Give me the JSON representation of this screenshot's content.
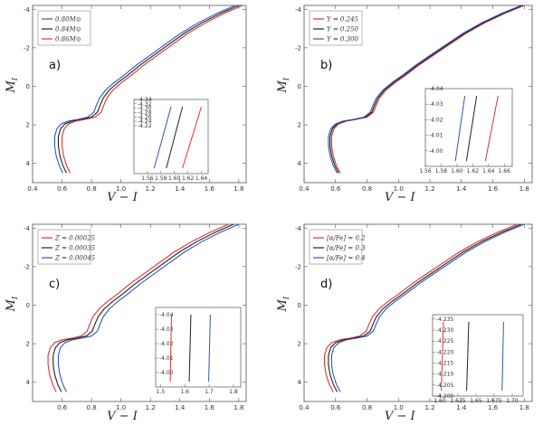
{
  "chart_data": [
    {
      "type": "line",
      "panel_label": "a)",
      "xlabel": "V − I",
      "ylabel": "M_I",
      "xlim": [
        0.4,
        1.85
      ],
      "ylim": [
        5,
        -4.2
      ],
      "xticks": [
        0.4,
        0.6,
        0.8,
        1.0,
        1.2,
        1.4,
        1.6,
        1.8
      ],
      "xtick_labels": [
        "0.4",
        "0.6",
        "0.8",
        "1.0",
        "1.2",
        "1.4",
        "1.6",
        "1.8"
      ],
      "yticks": [
        -4,
        -2,
        0,
        2,
        4
      ],
      "ytick_labels": [
        "-4",
        "-2",
        "0",
        "2",
        "4"
      ],
      "legend": [
        "0.80M⊙",
        "0.84M⊙",
        "0.86M⊙"
      ],
      "legend_position": "top-left",
      "series": [
        {
          "name": "0.80M⊙",
          "color": "#3355bb",
          "dx": -0.025
        },
        {
          "name": "0.84M⊙",
          "color": "#222222",
          "dx": 0.0
        },
        {
          "name": "0.86M⊙",
          "color": "#dd3333",
          "dx": 0.025
        }
      ],
      "inset": {
        "xlim": [
          1.54,
          1.65
        ],
        "ylim": [
          -4.0,
          -4.34
        ],
        "xticks": [
          1.56,
          1.58,
          1.6,
          1.62,
          1.64
        ],
        "xtick_labels": [
          "1.56",
          "1.58",
          "1.60",
          "1.62",
          "1.64"
        ],
        "yticks": [
          -4.34,
          -4.32,
          -4.3,
          -4.28,
          -4.26,
          -4.24,
          -4.22
        ],
        "ytick_labels": [
          "-4.34",
          "-4.32",
          "-4.30",
          "-4.28",
          "-4.26",
          "-4.24",
          "-4.22"
        ],
        "lines": [
          {
            "color": "#3355bb",
            "x_top": 1.595,
            "x_bottom": 1.57
          },
          {
            "color": "#222222",
            "x_top": 1.612,
            "x_bottom": 1.588
          },
          {
            "color": "#dd3333",
            "x_top": 1.64,
            "x_bottom": 1.612
          }
        ]
      }
    },
    {
      "type": "line",
      "panel_label": "b)",
      "xlabel": "V − I",
      "ylabel": "M_I",
      "xlim": [
        0.4,
        1.85
      ],
      "ylim": [
        5,
        -4.2
      ],
      "xticks": [
        0.4,
        0.6,
        0.8,
        1.0,
        1.2,
        1.4,
        1.6,
        1.8
      ],
      "xtick_labels": [
        "0.4",
        "0.6",
        "0.8",
        "1.0",
        "1.2",
        "1.4",
        "1.6",
        "1.8"
      ],
      "yticks": [
        -4,
        -2,
        0,
        2,
        4
      ],
      "ytick_labels": [
        "-4",
        "-2",
        "0",
        "2",
        "4"
      ],
      "legend": [
        "Y = 0.245",
        "Y = 0.250",
        "Y = 0.300"
      ],
      "legend_position": "top-left",
      "series": [
        {
          "name": "Y = 0.245",
          "color": "#dd3333",
          "dx": 0.0
        },
        {
          "name": "Y = 0.250",
          "color": "#222222",
          "dx": -0.01
        },
        {
          "name": "Y = 0.300",
          "color": "#3355bb",
          "dx": -0.02
        }
      ],
      "inset": {
        "xlim": [
          1.56,
          1.67
        ],
        "ylim": [
          -3.99,
          -4.04
        ],
        "xticks": [
          1.56,
          1.58,
          1.6,
          1.62,
          1.64,
          1.66
        ],
        "xtick_labels": [
          "1.56",
          "1.58",
          "1.60",
          "1.62",
          "1.64",
          "1.66"
        ],
        "yticks": [
          -4.04,
          -4.03,
          -4.02,
          -4.01,
          -4.0
        ],
        "ytick_labels": [
          "-4.04",
          "-4.03",
          "-4.02",
          "-4.01",
          "-4.00"
        ],
        "lines": [
          {
            "color": "#3355bb",
            "x_top": 1.61,
            "x_bottom": 1.598
          },
          {
            "color": "#222222",
            "x_top": 1.625,
            "x_bottom": 1.612
          },
          {
            "color": "#dd3333",
            "x_top": 1.652,
            "x_bottom": 1.636
          }
        ]
      }
    },
    {
      "type": "line",
      "panel_label": "c)",
      "xlabel": "V − I",
      "ylabel": "M_I",
      "xlim": [
        0.4,
        1.85
      ],
      "ylim": [
        5,
        -4.2
      ],
      "xticks": [
        0.6,
        0.8,
        1.0,
        1.2,
        1.4,
        1.6,
        1.8
      ],
      "xtick_labels": [
        "0.6",
        "0.8",
        "1.0",
        "1.2",
        "1.4",
        "1.6",
        "1.8"
      ],
      "yticks": [
        -4,
        -2,
        0,
        2,
        4
      ],
      "ytick_labels": [
        "-4",
        "-2",
        "0",
        "2",
        "4"
      ],
      "legend": [
        "Z = 0.00025",
        "Z = 0.00035",
        "Z = 0.00045"
      ],
      "legend_position": "top-left",
      "series": [
        {
          "name": "Z = 0.00025",
          "color": "#dd3333",
          "dx": -0.07
        },
        {
          "name": "Z = 0.00035",
          "color": "#222222",
          "dx": -0.035
        },
        {
          "name": "Z = 0.00045",
          "color": "#3355bb",
          "dx": 0.0
        }
      ],
      "inset": {
        "xlim": [
          1.48,
          1.83
        ],
        "ylim": [
          -3.99,
          -4.045
        ],
        "xticks": [
          1.5,
          1.6,
          1.7,
          1.8
        ],
        "xtick_labels": [
          "1.5",
          "1.6",
          "1.7",
          "1.8"
        ],
        "yticks": [
          -4.04,
          -4.03,
          -4.02,
          -4.01,
          -4.0
        ],
        "ytick_labels": [
          "-4.04",
          "-4.03",
          "-4.02",
          "-4.01",
          "-4.00"
        ],
        "lines": [
          {
            "color": "#dd3333",
            "x_top": 1.545,
            "x_bottom": 1.54
          },
          {
            "color": "#222222",
            "x_top": 1.625,
            "x_bottom": 1.618
          },
          {
            "color": "#3355bb",
            "x_top": 1.705,
            "x_bottom": 1.698
          }
        ]
      }
    },
    {
      "type": "line",
      "panel_label": "d)",
      "xlabel": "V − I",
      "ylabel": "M_I",
      "xlim": [
        0.4,
        1.85
      ],
      "ylim": [
        5,
        -4.2
      ],
      "xticks": [
        0.4,
        0.6,
        0.8,
        1.0,
        1.2,
        1.4,
        1.6,
        1.8
      ],
      "xtick_labels": [
        "0.4",
        "0.6",
        "0.8",
        "1.0",
        "1.2",
        "1.4",
        "1.6",
        "1.8"
      ],
      "yticks": [
        -4,
        -2,
        0,
        2,
        4
      ],
      "ytick_labels": [
        "-4",
        "-2",
        "0",
        "2",
        "4"
      ],
      "legend": [
        "[α/Fe] = 0.2",
        "[α/Fe] = 0.3",
        "[α/Fe] = 0.4"
      ],
      "legend_position": "top-left",
      "series": [
        {
          "name": "[α/Fe] = 0.2",
          "color": "#dd3333",
          "dx": -0.045
        },
        {
          "name": "[α/Fe] = 0.3",
          "color": "#222222",
          "dx": -0.02
        },
        {
          "name": "[α/Fe] = 0.4",
          "color": "#3355bb",
          "dx": 0.0
        }
      ],
      "inset": {
        "xlim": [
          1.59,
          1.715
        ],
        "ylim": [
          -4.2,
          -4.237
        ],
        "xticks": [
          1.6,
          1.625,
          1.65,
          1.675,
          1.7
        ],
        "xtick_labels": [
          "1.60",
          "1.625",
          "1.65",
          "1.675",
          "1.70"
        ],
        "yticks": [
          -4.235,
          -4.23,
          -4.225,
          -4.22,
          -4.215,
          -4.21,
          -4.205,
          -4.2
        ],
        "ytick_labels": [
          "-4.235",
          "-4.230",
          "-4.225",
          "-4.220",
          "-4.215",
          "-4.210",
          "-4.205",
          "-4.200"
        ],
        "lines": [
          {
            "color": "#dd3333",
            "x_top": 1.605,
            "x_bottom": 1.602
          },
          {
            "color": "#222222",
            "x_top": 1.64,
            "x_bottom": 1.637
          },
          {
            "color": "#3355bb",
            "x_top": 1.688,
            "x_bottom": 1.686
          }
        ]
      }
    }
  ],
  "base_isochrone": {
    "description": "shared isochrone track shape (V-I, M_I) used by all series, shifted by dx",
    "points": [
      [
        0.63,
        4.5
      ],
      [
        0.605,
        4.1
      ],
      [
        0.585,
        3.6
      ],
      [
        0.575,
        3.1
      ],
      [
        0.575,
        2.6
      ],
      [
        0.59,
        2.2
      ],
      [
        0.62,
        1.95
      ],
      [
        0.67,
        1.8
      ],
      [
        0.73,
        1.72
      ],
      [
        0.8,
        1.6
      ],
      [
        0.84,
        1.35
      ],
      [
        0.86,
        0.95
      ],
      [
        0.88,
        0.6
      ],
      [
        0.92,
        0.2
      ],
      [
        0.98,
        -0.2
      ],
      [
        1.05,
        -0.6
      ],
      [
        1.13,
        -1.1
      ],
      [
        1.22,
        -1.6
      ],
      [
        1.32,
        -2.15
      ],
      [
        1.43,
        -2.75
      ],
      [
        1.55,
        -3.3
      ],
      [
        1.68,
        -3.8
      ],
      [
        1.8,
        -4.2
      ]
    ]
  }
}
